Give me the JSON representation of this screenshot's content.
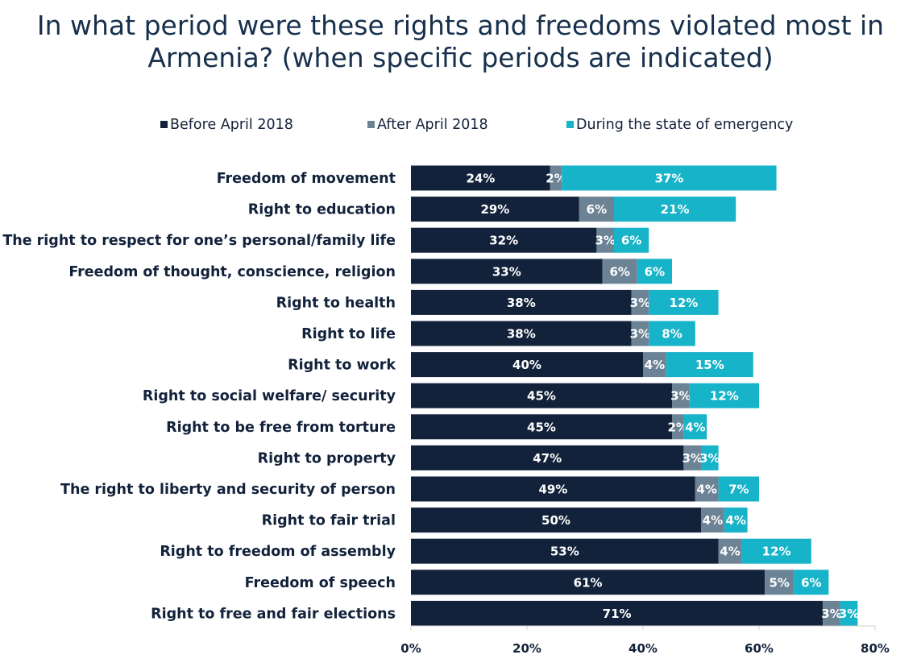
{
  "title": "In what period were these rights and freedoms violated most in Armenia? (when specific periods are indicated)",
  "chart_data": {
    "type": "bar",
    "orientation": "horizontal",
    "stacked": true,
    "title": "In what period were these rights and freedoms violated most in Armenia? (when specific periods are indicated)",
    "categories": [
      "Freedom of movement",
      "Right to education",
      "The right to respect for one’s personal/family life",
      "Freedom of thought, conscience, religion",
      "Right to health",
      "Right to life",
      "Right to work",
      "Right to social welfare/ security",
      "Right to be free from torture",
      "Right to property",
      "The right to liberty and security of person",
      "Right to fair trial",
      "Right to freedom of assembly",
      "Freedom of speech",
      "Right to free and fair elections"
    ],
    "series": [
      {
        "name": "Before April 2018",
        "color": "#13223b",
        "values": [
          24,
          29,
          32,
          33,
          38,
          38,
          40,
          45,
          45,
          47,
          49,
          50,
          53,
          61,
          71
        ]
      },
      {
        "name": "After April 2018",
        "color": "#6c8295",
        "values": [
          2,
          6,
          3,
          6,
          3,
          3,
          4,
          3,
          2,
          3,
          4,
          4,
          4,
          5,
          3
        ]
      },
      {
        "name": "During the state of emergency",
        "color": "#17b3c8",
        "values": [
          37,
          21,
          6,
          6,
          12,
          8,
          15,
          12,
          4,
          3,
          7,
          4,
          12,
          6,
          3
        ]
      }
    ],
    "xticks": [
      "0%",
      "20%",
      "40%",
      "60%",
      "80%"
    ],
    "xlim": [
      0,
      80
    ],
    "value_suffix": "%",
    "legend_position": "top",
    "grid": false
  }
}
